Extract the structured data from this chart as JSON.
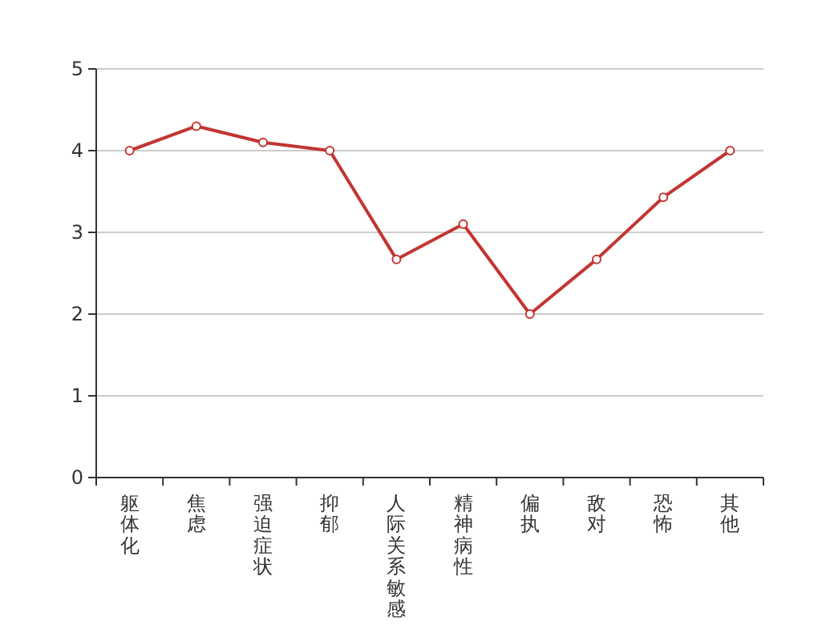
{
  "chart_data": {
    "type": "line",
    "categories": [
      "躯体化",
      "焦虑",
      "强迫症状",
      "抑郁",
      "人际关系敏感",
      "精神病性",
      "偏执",
      "敌对",
      "恐怖",
      "其他"
    ],
    "series": [
      {
        "color": "#c23531",
        "values": [
          4,
          4.3,
          4.1,
          4,
          2.67,
          3.1,
          2,
          2.67,
          3.43,
          4
        ]
      }
    ],
    "ylim": [
      0,
      5
    ],
    "yticks": [
      0,
      1,
      2,
      3,
      4,
      5
    ],
    "grid": "y",
    "marker": "circle",
    "line_style": "solid"
  }
}
